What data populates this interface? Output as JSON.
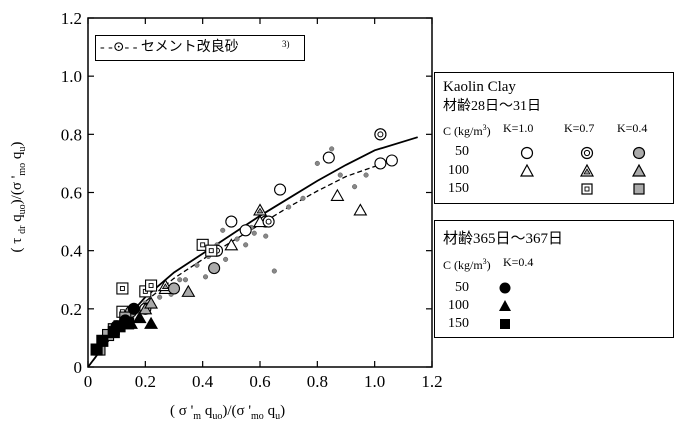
{
  "chart_data": {
    "type": "scatter",
    "xlabel": "( σ '_m q_uo)/(σ '_mo q_u)",
    "ylabel": "( τ_dr q_uo)/(σ '_mo q_u)",
    "xlim": [
      0,
      1.2
    ],
    "ylim": [
      0,
      1.2
    ],
    "x_ticks": [
      "0",
      "0.2",
      "0.4",
      "0.6",
      "0.8",
      "1.0",
      "1.2"
    ],
    "y_ticks": [
      "0",
      "0.2",
      "0.4",
      "0.6",
      "0.8",
      "1.0",
      "1.2"
    ],
    "grid": false,
    "legend_top_left": "- -⊙- - セメント改良砂",
    "legend_top_left_super": "3)",
    "legend_box1": {
      "title": "Kaolin Clay",
      "subtitle": "材齢28日～31日",
      "c_label": "C (kg/m",
      "c_sup": "3",
      "c_label_end": ")",
      "k_labels": [
        "K=1.0",
        "K=0.7",
        "K=0.4"
      ],
      "rows": [
        "50",
        "100",
        "150"
      ]
    },
    "legend_box2": {
      "title": "材齢365日～367日",
      "c_label": "C (kg/m",
      "c_sup": "3",
      "c_label_end": ")",
      "k_label": "K=0.4",
      "rows": [
        "50",
        "100",
        "150"
      ]
    },
    "series": [
      {
        "marker": "circle-open",
        "values": [
          [
            0.5,
            0.5
          ],
          [
            0.55,
            0.47
          ],
          [
            0.67,
            0.61
          ],
          [
            0.84,
            0.72
          ],
          [
            1.02,
            0.8
          ],
          [
            1.02,
            0.7
          ],
          [
            1.06,
            0.71
          ],
          [
            0.62,
            0.5
          ]
        ]
      },
      {
        "marker": "triangle-open",
        "values": [
          [
            0.27,
            0.27
          ],
          [
            0.5,
            0.42
          ],
          [
            0.6,
            0.5
          ],
          [
            0.87,
            0.59
          ],
          [
            0.95,
            0.54
          ]
        ]
      },
      {
        "marker": "circle-double",
        "values": [
          [
            0.45,
            0.4
          ],
          [
            0.63,
            0.5
          ],
          [
            1.02,
            0.8
          ],
          [
            0.2,
            0.2
          ]
        ]
      },
      {
        "marker": "triangle-double",
        "values": [
          [
            0.6,
            0.54
          ],
          [
            0.27,
            0.28
          ]
        ]
      },
      {
        "marker": "square-double",
        "values": [
          [
            0.4,
            0.42
          ],
          [
            0.12,
            0.19
          ],
          [
            0.12,
            0.27
          ],
          [
            0.2,
            0.26
          ],
          [
            0.22,
            0.28
          ],
          [
            0.43,
            0.4
          ]
        ]
      },
      {
        "marker": "circle-gray",
        "values": [
          [
            0.3,
            0.27
          ],
          [
            0.44,
            0.34
          ],
          [
            0.15,
            0.19
          ]
        ]
      },
      {
        "marker": "triangle-gray",
        "values": [
          [
            0.2,
            0.2
          ],
          [
            0.22,
            0.22
          ],
          [
            0.35,
            0.26
          ]
        ]
      },
      {
        "marker": "square-gray",
        "values": [
          [
            0.07,
            0.11
          ],
          [
            0.09,
            0.13
          ],
          [
            0.13,
            0.17
          ],
          [
            0.04,
            0.06
          ]
        ]
      },
      {
        "marker": "circle-black",
        "values": [
          [
            0.16,
            0.2
          ],
          [
            0.13,
            0.16
          ],
          [
            0.1,
            0.14
          ]
        ]
      },
      {
        "marker": "triangle-black",
        "values": [
          [
            0.15,
            0.15
          ],
          [
            0.22,
            0.15
          ],
          [
            0.18,
            0.17
          ]
        ]
      },
      {
        "marker": "square-black",
        "values": [
          [
            0.03,
            0.06
          ],
          [
            0.05,
            0.09
          ],
          [
            0.11,
            0.14
          ],
          [
            0.09,
            0.12
          ],
          [
            0.14,
            0.15
          ]
        ]
      },
      {
        "marker": "dot-small",
        "values": [
          [
            0.1,
            0.15
          ],
          [
            0.2,
            0.22
          ],
          [
            0.25,
            0.24
          ],
          [
            0.32,
            0.3
          ],
          [
            0.38,
            0.35
          ],
          [
            0.42,
            0.38
          ],
          [
            0.45,
            0.42
          ],
          [
            0.48,
            0.37
          ],
          [
            0.52,
            0.44
          ],
          [
            0.55,
            0.42
          ],
          [
            0.58,
            0.46
          ],
          [
            0.62,
            0.45
          ],
          [
            0.65,
            0.33
          ],
          [
            0.7,
            0.55
          ],
          [
            0.75,
            0.58
          ],
          [
            0.8,
            0.7
          ],
          [
            0.88,
            0.66
          ],
          [
            0.93,
            0.62
          ],
          [
            0.97,
            0.66
          ],
          [
            0.85,
            0.75
          ],
          [
            0.34,
            0.3
          ],
          [
            0.41,
            0.31
          ],
          [
            0.47,
            0.47
          ],
          [
            0.57,
            0.48
          ],
          [
            0.29,
            0.25
          ]
        ]
      }
    ],
    "lines": [
      {
        "style": "solid",
        "values": [
          [
            0,
            0
          ],
          [
            0.1,
            0.13
          ],
          [
            0.2,
            0.24
          ],
          [
            0.3,
            0.325
          ],
          [
            0.4,
            0.39
          ],
          [
            0.5,
            0.455
          ],
          [
            0.6,
            0.52
          ],
          [
            0.7,
            0.58
          ],
          [
            0.8,
            0.64
          ],
          [
            0.9,
            0.695
          ],
          [
            1.0,
            0.745
          ],
          [
            1.15,
            0.79
          ]
        ]
      },
      {
        "style": "dashed",
        "values": [
          [
            0,
            0
          ],
          [
            0.1,
            0.125
          ],
          [
            0.2,
            0.225
          ],
          [
            0.3,
            0.305
          ],
          [
            0.4,
            0.37
          ],
          [
            0.5,
            0.43
          ],
          [
            0.6,
            0.49
          ],
          [
            0.7,
            0.55
          ],
          [
            0.8,
            0.605
          ],
          [
            0.9,
            0.655
          ],
          [
            1.03,
            0.7
          ]
        ]
      }
    ]
  }
}
